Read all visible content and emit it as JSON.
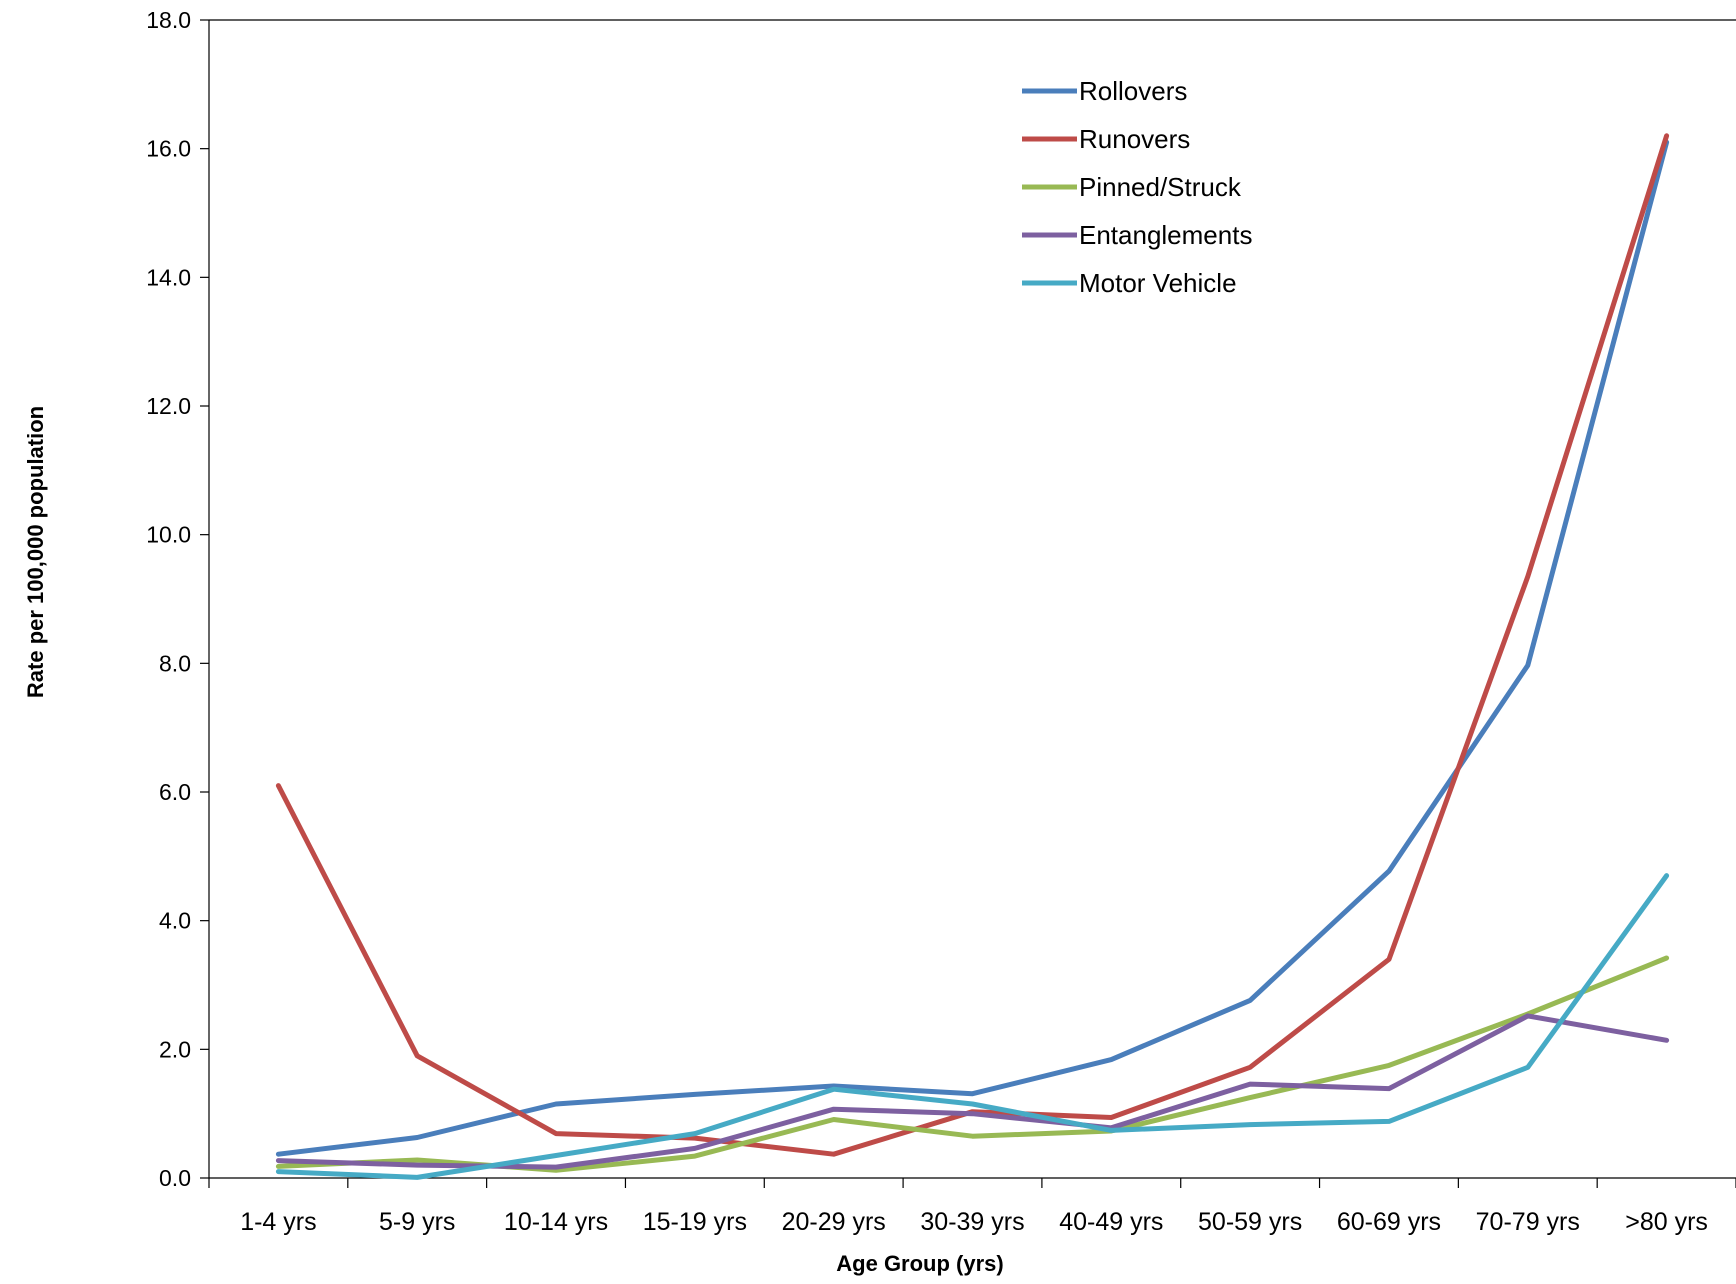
{
  "chart_data": {
    "type": "line",
    "title": "",
    "xlabel": "Age Group (yrs)",
    "ylabel": "Rate per 100,000 population",
    "ylim": [
      0,
      18
    ],
    "ytick_step": 2,
    "ytick_labels": [
      "0.0",
      "2.0",
      "4.0",
      "6.0",
      "8.0",
      "10.0",
      "12.0",
      "14.0",
      "16.0",
      "18.0"
    ],
    "categories": [
      "1-4 yrs",
      "5-9 yrs",
      "10-14 yrs",
      "15-19 yrs",
      "20-29 yrs",
      "30-39 yrs",
      "40-49 yrs",
      "50-59 yrs",
      "60-69 yrs",
      "70-79 yrs",
      ">80 yrs"
    ],
    "grid": false,
    "legend_position": "top-right",
    "series": [
      {
        "name": "Rollovers",
        "color": "#4A7EBB",
        "values": [
          0.37,
          0.63,
          1.15,
          1.3,
          1.43,
          1.31,
          1.84,
          2.76,
          4.77,
          7.97,
          16.1
        ]
      },
      {
        "name": "Runovers",
        "color": "#BE4B48",
        "values": [
          6.1,
          1.9,
          0.69,
          0.62,
          0.37,
          1.03,
          0.94,
          1.72,
          3.4,
          9.35,
          16.2
        ]
      },
      {
        "name": "Pinned/Struck",
        "color": "#98B954",
        "values": [
          0.18,
          0.28,
          0.12,
          0.34,
          0.91,
          0.65,
          0.73,
          1.25,
          1.75,
          2.55,
          3.42
        ]
      },
      {
        "name": "Entanglements",
        "color": "#7D60A0",
        "values": [
          0.27,
          0.2,
          0.17,
          0.46,
          1.07,
          1.0,
          0.78,
          1.46,
          1.39,
          2.52,
          2.14
        ]
      },
      {
        "name": "Motor Vehicle",
        "color": "#46AAC5",
        "values": [
          0.1,
          0.01,
          0.35,
          0.69,
          1.38,
          1.15,
          0.74,
          0.83,
          0.88,
          1.72,
          4.7
        ]
      }
    ]
  }
}
